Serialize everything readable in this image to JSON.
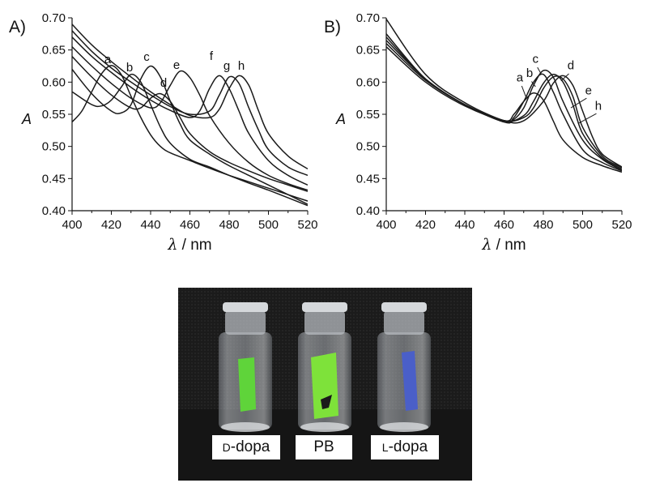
{
  "chart_data": [
    {
      "type": "line",
      "panel_label": "A)",
      "xlabel_symbol": "λ",
      "xlabel_unit": " / nm",
      "ylabel": "A",
      "xlim": [
        400,
        520
      ],
      "ylim": [
        0.4,
        0.7
      ],
      "x_ticks": [
        400,
        420,
        440,
        460,
        480,
        500,
        520
      ],
      "y_ticks": [
        "0.40",
        "0.45",
        "0.50",
        "0.55",
        "0.60",
        "0.65",
        "0.70"
      ],
      "grid": false,
      "series": [
        {
          "name": "a",
          "x": [
            400,
            405,
            410,
            415,
            420,
            425,
            430,
            435,
            440,
            445,
            450,
            460,
            470,
            480,
            490,
            500,
            510,
            520
          ],
          "y": [
            0.538,
            0.555,
            0.585,
            0.613,
            0.626,
            0.612,
            0.578,
            0.545,
            0.518,
            0.5,
            0.49,
            0.478,
            0.466,
            0.455,
            0.445,
            0.435,
            0.425,
            0.415
          ]
        },
        {
          "name": "b",
          "x": [
            400,
            410,
            415,
            420,
            425,
            430,
            435,
            440,
            445,
            450,
            460,
            470,
            480,
            490,
            500,
            510,
            520
          ],
          "y": [
            0.585,
            0.565,
            0.563,
            0.572,
            0.592,
            0.612,
            0.6,
            0.565,
            0.53,
            0.505,
            0.48,
            0.468,
            0.455,
            0.443,
            0.432,
            0.42,
            0.408
          ]
        },
        {
          "name": "c",
          "x": [
            400,
            410,
            420,
            425,
            430,
            435,
            440,
            445,
            450,
            455,
            460,
            470,
            480,
            490,
            500,
            510,
            520
          ],
          "y": [
            0.62,
            0.582,
            0.555,
            0.552,
            0.565,
            0.605,
            0.625,
            0.608,
            0.57,
            0.535,
            0.51,
            0.488,
            0.47,
            0.455,
            0.44,
            0.425,
            0.41
          ]
        },
        {
          "name": "d",
          "x": [
            400,
            410,
            420,
            430,
            435,
            440,
            445,
            450,
            455,
            460,
            470,
            480,
            490,
            500,
            510,
            520
          ],
          "y": [
            0.64,
            0.608,
            0.58,
            0.56,
            0.56,
            0.575,
            0.582,
            0.57,
            0.545,
            0.52,
            0.492,
            0.475,
            0.462,
            0.45,
            0.44,
            0.43
          ]
        },
        {
          "name": "e",
          "x": [
            400,
            410,
            420,
            430,
            440,
            445,
            450,
            455,
            460,
            465,
            470,
            480,
            490,
            500,
            510,
            520
          ],
          "y": [
            0.655,
            0.625,
            0.598,
            0.575,
            0.56,
            0.568,
            0.595,
            0.617,
            0.607,
            0.58,
            0.548,
            0.505,
            0.475,
            0.455,
            0.442,
            0.432
          ]
        },
        {
          "name": "f",
          "x": [
            400,
            410,
            420,
            430,
            440,
            450,
            460,
            465,
            470,
            475,
            480,
            485,
            490,
            500,
            510,
            520
          ],
          "y": [
            0.67,
            0.64,
            0.615,
            0.592,
            0.572,
            0.556,
            0.545,
            0.555,
            0.59,
            0.61,
            0.59,
            0.555,
            0.52,
            0.478,
            0.455,
            0.44
          ]
        },
        {
          "name": "g",
          "x": [
            400,
            410,
            420,
            430,
            440,
            450,
            460,
            470,
            475,
            480,
            485,
            490,
            495,
            500,
            510,
            520
          ],
          "y": [
            0.68,
            0.648,
            0.622,
            0.6,
            0.58,
            0.562,
            0.55,
            0.555,
            0.58,
            0.608,
            0.598,
            0.56,
            0.525,
            0.495,
            0.468,
            0.455
          ]
        },
        {
          "name": "h",
          "x": [
            400,
            410,
            420,
            430,
            440,
            450,
            460,
            470,
            475,
            480,
            485,
            490,
            495,
            500,
            510,
            520
          ],
          "y": [
            0.69,
            0.658,
            0.632,
            0.608,
            0.585,
            0.565,
            0.548,
            0.545,
            0.558,
            0.59,
            0.61,
            0.595,
            0.555,
            0.52,
            0.485,
            0.465
          ]
        }
      ]
    },
    {
      "type": "line",
      "panel_label": "B)",
      "xlabel_symbol": "λ",
      "xlabel_unit": " / nm",
      "ylabel": "A",
      "xlim": [
        400,
        520
      ],
      "ylim": [
        0.4,
        0.7
      ],
      "x_ticks": [
        400,
        420,
        440,
        460,
        480,
        500,
        520
      ],
      "y_ticks": [
        "0.40",
        "0.45",
        "0.50",
        "0.55",
        "0.60",
        "0.65",
        "0.70"
      ],
      "grid": false,
      "series": [
        {
          "name": "a",
          "x": [
            400,
            420,
            440,
            460,
            465,
            470,
            475,
            480,
            485,
            490,
            500,
            510,
            520
          ],
          "y": [
            0.675,
            0.605,
            0.565,
            0.54,
            0.55,
            0.57,
            0.583,
            0.572,
            0.54,
            0.51,
            0.483,
            0.47,
            0.46
          ]
        },
        {
          "name": "b",
          "x": [
            400,
            420,
            440,
            460,
            465,
            470,
            475,
            480,
            485,
            490,
            500,
            510,
            520
          ],
          "y": [
            0.67,
            0.605,
            0.565,
            0.538,
            0.545,
            0.57,
            0.6,
            0.612,
            0.585,
            0.55,
            0.495,
            0.475,
            0.462
          ]
        },
        {
          "name": "c",
          "x": [
            400,
            420,
            440,
            460,
            465,
            470,
            475,
            480,
            485,
            490,
            500,
            510,
            520
          ],
          "y": [
            0.665,
            0.605,
            0.565,
            0.538,
            0.542,
            0.56,
            0.595,
            0.618,
            0.608,
            0.57,
            0.51,
            0.48,
            0.463
          ]
        },
        {
          "name": "d",
          "x": [
            400,
            420,
            440,
            460,
            470,
            475,
            480,
            485,
            490,
            495,
            500,
            510,
            520
          ],
          "y": [
            0.66,
            0.603,
            0.565,
            0.54,
            0.548,
            0.57,
            0.598,
            0.612,
            0.6,
            0.565,
            0.52,
            0.482,
            0.465
          ]
        },
        {
          "name": "e",
          "x": [
            400,
            420,
            440,
            460,
            470,
            475,
            480,
            485,
            490,
            495,
            500,
            510,
            520
          ],
          "y": [
            0.655,
            0.6,
            0.563,
            0.54,
            0.545,
            0.56,
            0.59,
            0.608,
            0.605,
            0.578,
            0.53,
            0.485,
            0.467
          ]
        },
        {
          "name": "h",
          "x": [
            400,
            420,
            440,
            460,
            470,
            480,
            485,
            490,
            495,
            500,
            505,
            510,
            520
          ],
          "y": [
            0.698,
            0.612,
            0.568,
            0.54,
            0.54,
            0.57,
            0.598,
            0.61,
            0.595,
            0.555,
            0.515,
            0.488,
            0.468
          ]
        }
      ],
      "labels": [
        {
          "text": "a",
          "x": 468,
          "y": 0.601
        },
        {
          "text": "b",
          "x": 473,
          "y": 0.608
        },
        {
          "text": "c",
          "x": 476,
          "y": 0.63
        },
        {
          "text": "d",
          "x": 494,
          "y": 0.62
        },
        {
          "text": "e",
          "x": 503,
          "y": 0.581
        },
        {
          "text": "h",
          "x": 508,
          "y": 0.557
        }
      ],
      "leaders": [
        {
          "x1": 469,
          "y1": 0.594,
          "x2": 471,
          "y2": 0.578
        },
        {
          "x1": 474,
          "y1": 0.601,
          "x2": 476,
          "y2": 0.593
        },
        {
          "x1": 477,
          "y1": 0.623,
          "x2": 479,
          "y2": 0.612
        },
        {
          "x1": 493,
          "y1": 0.613,
          "x2": 489,
          "y2": 0.602
        },
        {
          "x1": 502,
          "y1": 0.575,
          "x2": 494,
          "y2": 0.56
        },
        {
          "x1": 507,
          "y1": 0.551,
          "x2": 498,
          "y2": 0.536
        }
      ]
    }
  ],
  "photo": {
    "labels": [
      {
        "prefix": "D",
        "rest": "-dopa"
      },
      {
        "prefix": "",
        "rest": "PB"
      },
      {
        "prefix": "L",
        "rest": "-dopa"
      }
    ],
    "colors": {
      "background": "#1c1c1c",
      "strip_left": "#5fd43a",
      "strip_middle": "#7ee23a",
      "strip_right": "#4a5fc8",
      "vial": "#c9ccd0"
    }
  }
}
